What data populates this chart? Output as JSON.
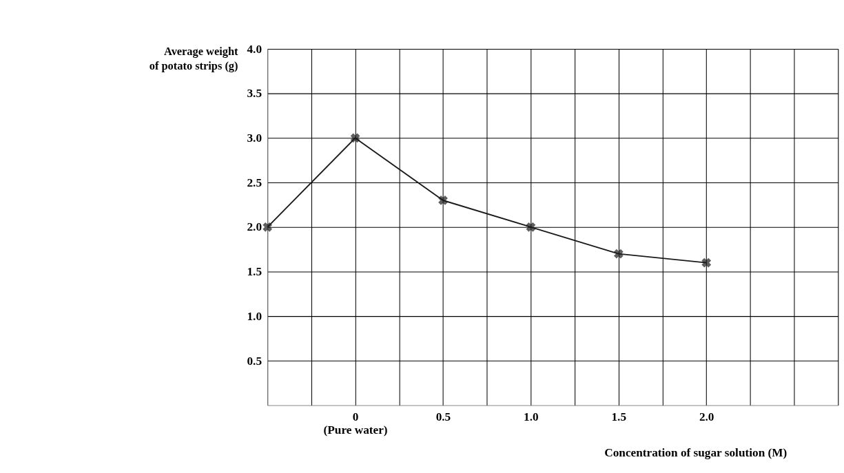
{
  "chart_data": {
    "type": "line",
    "xlabel": "Concentration of sugar solution (M)",
    "ylabel": "Average weight\nof potato strips (g)",
    "x": [
      -0.5,
      0,
      0.5,
      1.0,
      1.5,
      2.0
    ],
    "series": [
      {
        "color": "#1a1a1a",
        "values": [
          2.0,
          3.0,
          2.3,
          2.0,
          1.7,
          1.6
        ]
      }
    ],
    "xlim": [
      -0.5,
      2.75
    ],
    "xticks": [
      {
        "value": -0.5,
        "label": null
      },
      {
        "value": -0.25,
        "label": null
      },
      {
        "value": 0,
        "label": "0\n(Pure water)"
      },
      {
        "value": 0.25,
        "label": null
      },
      0.5,
      {
        "value": 0.75,
        "label": null
      },
      {
        "value": 1.0,
        "label": "1.0"
      },
      {
        "value": 1.25,
        "label": null
      },
      1.5,
      {
        "value": 1.75,
        "label": null
      },
      {
        "value": 2.0,
        "label": "2.0"
      },
      {
        "value": 2.25,
        "label": null
      },
      {
        "value": 2.5,
        "label": null
      },
      {
        "value": 2.75,
        "label": null
      }
    ],
    "ylim": [
      0,
      4.0
    ],
    "yticks": [
      0.5,
      {
        "value": 1.0,
        "label": "1.0"
      },
      1.5,
      {
        "value": 2.0,
        "label": "2.0"
      },
      2.5,
      {
        "value": 3.0,
        "label": "3.0"
      },
      3.5,
      {
        "value": 4.0,
        "label": "4.0"
      }
    ],
    "grid": true,
    "marker": "cross",
    "line_style": "solid",
    "legend": false
  }
}
